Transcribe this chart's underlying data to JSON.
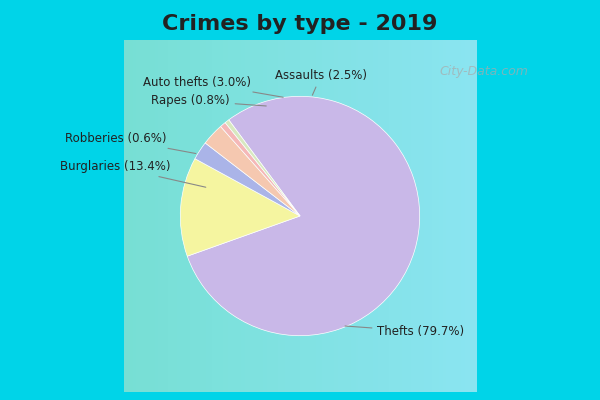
{
  "title": "Crimes by type - 2019",
  "labels": [
    "Thefts",
    "Burglaries",
    "Assaults",
    "Auto thefts",
    "Rapes",
    "Robberies"
  ],
  "values": [
    79.7,
    13.4,
    2.5,
    3.0,
    0.8,
    0.6
  ],
  "colors": [
    "#c9b8e8",
    "#f5f5a0",
    "#aab4e8",
    "#f5c8b0",
    "#f5b8b8",
    "#d8e8c0"
  ],
  "label_texts": [
    "Thefts (79.7%)",
    "Burglaries (13.4%)",
    "Assaults (2.5%)",
    "Auto thefts (3.0%)",
    "Rapes (0.8%)",
    "Robberies (0.6%)"
  ],
  "background_top": "#00d4e8",
  "background_main": "#e0f0e0",
  "title_fontsize": 16,
  "label_fontsize": 9
}
